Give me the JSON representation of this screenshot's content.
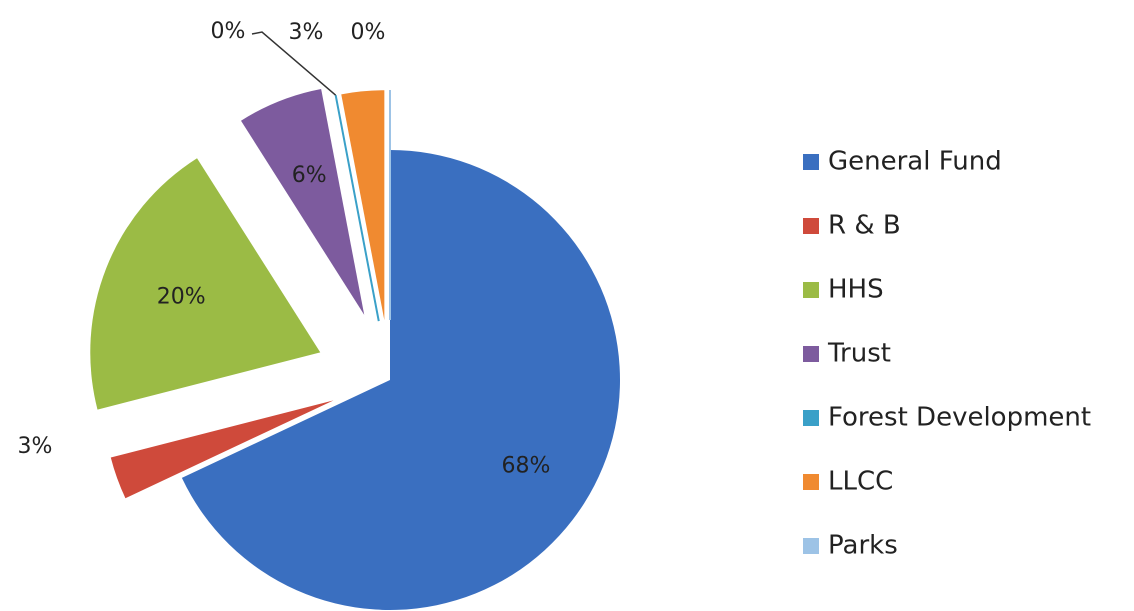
{
  "chart_data": {
    "type": "pie",
    "categories": [
      "General Fund",
      "R & B",
      "HHS",
      "Trust",
      "Forest Development",
      "LLCC",
      "Parks"
    ],
    "values": [
      68,
      3,
      20,
      6,
      0,
      3,
      0
    ],
    "value_labels": [
      "68%",
      "3%",
      "20%",
      "6%",
      "0%",
      "3%",
      "0%"
    ],
    "colors": [
      "#3a6fc0",
      "#cf4a3b",
      "#9bbb45",
      "#7d5b9e",
      "#3aa0c8",
      "#f08a30",
      "#9dc3e6"
    ],
    "legend": "right"
  }
}
